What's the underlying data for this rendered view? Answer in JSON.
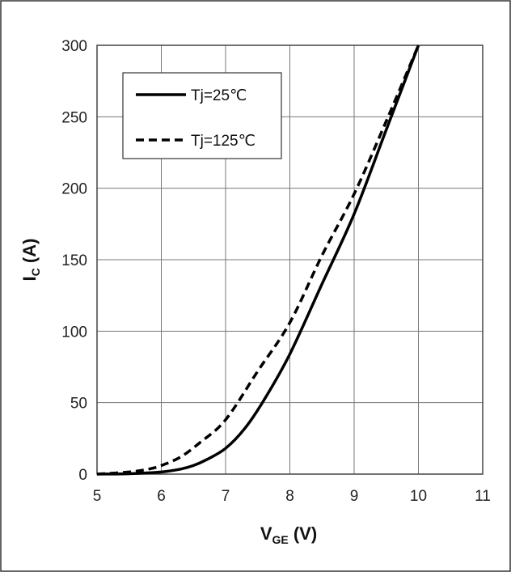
{
  "chart_data": {
    "type": "line",
    "title": "",
    "xlabel": {
      "main": "V",
      "sub": "GE",
      "unit": " (V)"
    },
    "ylabel": {
      "main": "I",
      "sub": "C",
      "unit": " (A)"
    },
    "xlim": [
      5,
      11
    ],
    "ylim": [
      0,
      300
    ],
    "xticks": [
      "5",
      "6",
      "7",
      "8",
      "9",
      "10",
      "11"
    ],
    "yticks": [
      "0",
      "50",
      "100",
      "150",
      "200",
      "250",
      "300"
    ],
    "grid": true,
    "legend": {
      "placement": "top-left"
    },
    "series": [
      {
        "name": "Tj=25℃",
        "style": "solid",
        "color": "#000000",
        "x": [
          5.0,
          5.5,
          6.0,
          6.3,
          6.5,
          6.7,
          7.0,
          7.3,
          7.6,
          8.0,
          8.5,
          9.0,
          9.5,
          10.0
        ],
        "y": [
          0,
          0.3,
          1.5,
          3.5,
          6,
          10,
          18,
          32,
          52,
          84,
          133,
          182,
          241,
          300
        ]
      },
      {
        "name": "Tj=125℃",
        "style": "dashed",
        "color": "#000000",
        "x": [
          5.0,
          5.5,
          5.8,
          6.0,
          6.3,
          6.6,
          7.0,
          7.5,
          8.0,
          8.5,
          9.0,
          9.5,
          10.0
        ],
        "y": [
          0,
          1.5,
          3.5,
          6,
          12,
          22,
          38,
          72,
          106,
          153,
          196,
          247,
          300
        ]
      }
    ]
  }
}
